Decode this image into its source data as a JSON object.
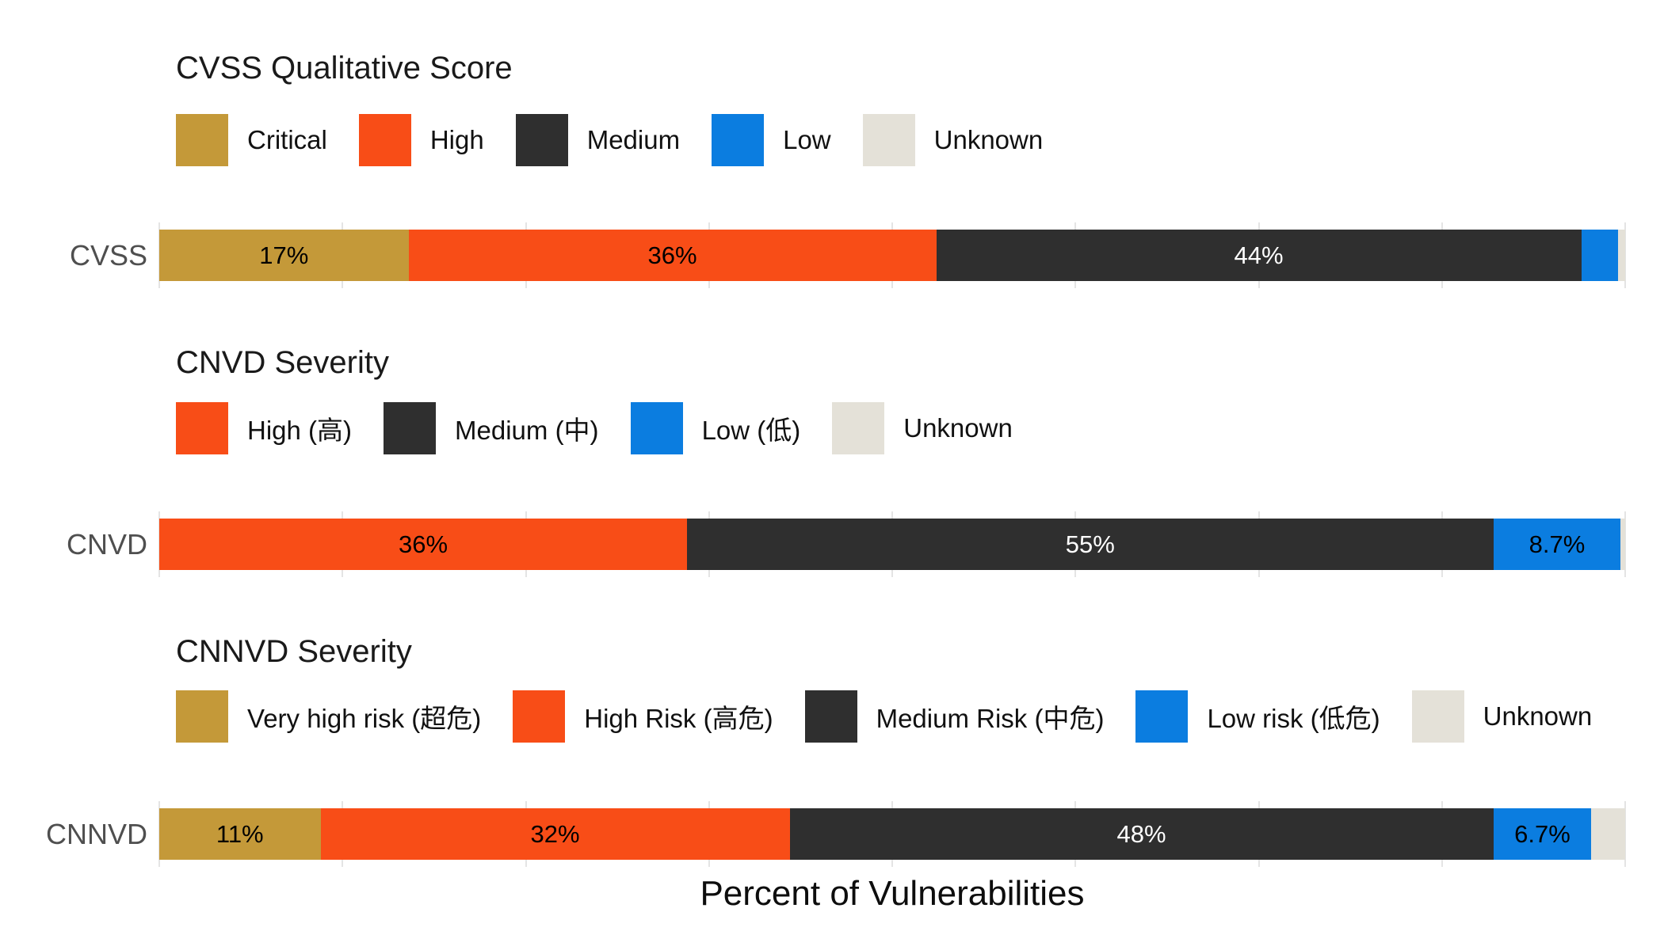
{
  "colors": {
    "gold": "#c49939",
    "orange": "#f84d17",
    "dark": "#2f2f2f",
    "blue": "#0b7de0",
    "beige": "#e4e1d8",
    "gridline": "#e4e4e4",
    "row_label": "#4f4f4f",
    "bar_label_dark": "#000000",
    "bar_label_light": "#ffffff"
  },
  "x_axis": {
    "label": "Percent of Vulnerabilities"
  },
  "chart_data": [
    {
      "type": "bar",
      "orientation": "horizontal",
      "stacked": true,
      "title": "CVSS Qualitative Score",
      "row_label": "CVSS",
      "xlim": [
        0,
        100
      ],
      "gridline_step_pct": 12.5,
      "grid": true,
      "legend_position": "top",
      "legend": [
        {
          "label": "Critical",
          "color_key": "gold"
        },
        {
          "label": "High",
          "color_key": "orange"
        },
        {
          "label": "Medium",
          "color_key": "dark"
        },
        {
          "label": "Low",
          "color_key": "blue"
        },
        {
          "label": "Unknown",
          "color_key": "beige"
        }
      ],
      "segments": [
        {
          "label": "Critical",
          "value": 17,
          "display": "17%",
          "color_key": "gold",
          "text_color": "#000000",
          "show_label": true
        },
        {
          "label": "High",
          "value": 36,
          "display": "36%",
          "color_key": "orange",
          "text_color": "#000000",
          "show_label": true
        },
        {
          "label": "Medium",
          "value": 44,
          "display": "44%",
          "color_key": "dark",
          "text_color": "#ffffff",
          "show_label": true
        },
        {
          "label": "Low",
          "value": 2.5,
          "display": "",
          "color_key": "blue",
          "text_color": "#000000",
          "show_label": false
        },
        {
          "label": "Unknown",
          "value": 0.5,
          "display": "",
          "color_key": "beige",
          "text_color": "#000000",
          "show_label": false
        }
      ]
    },
    {
      "type": "bar",
      "orientation": "horizontal",
      "stacked": true,
      "title": "CNVD Severity",
      "row_label": "CNVD",
      "xlim": [
        0,
        100
      ],
      "gridline_step_pct": 12.5,
      "grid": true,
      "legend_position": "top",
      "legend": [
        {
          "label": "High (高)",
          "color_key": "orange"
        },
        {
          "label": "Medium (中)",
          "color_key": "dark"
        },
        {
          "label": "Low (低)",
          "color_key": "blue"
        },
        {
          "label": "Unknown",
          "color_key": "beige"
        }
      ],
      "segments": [
        {
          "label": "High (高)",
          "value": 36,
          "display": "36%",
          "color_key": "orange",
          "text_color": "#000000",
          "show_label": true
        },
        {
          "label": "Medium (中)",
          "value": 55,
          "display": "55%",
          "color_key": "dark",
          "text_color": "#ffffff",
          "show_label": true
        },
        {
          "label": "Low (低)",
          "value": 8.7,
          "display": "8.7%",
          "color_key": "blue",
          "text_color": "#000000",
          "show_label": true
        },
        {
          "label": "Unknown",
          "value": 0.3,
          "display": "",
          "color_key": "beige",
          "text_color": "#000000",
          "show_label": false
        }
      ]
    },
    {
      "type": "bar",
      "orientation": "horizontal",
      "stacked": true,
      "title": "CNNVD Severity",
      "row_label": "CNNVD",
      "xlim": [
        0,
        100
      ],
      "gridline_step_pct": 12.5,
      "grid": true,
      "legend_position": "top",
      "legend": [
        {
          "label": "Very high risk (超危)",
          "color_key": "gold"
        },
        {
          "label": "High Risk (高危)",
          "color_key": "orange"
        },
        {
          "label": "Medium Risk (中危)",
          "color_key": "dark"
        },
        {
          "label": "Low risk (低危)",
          "color_key": "blue"
        },
        {
          "label": "Unknown",
          "color_key": "beige"
        }
      ],
      "segments": [
        {
          "label": "Very high risk (超危)",
          "value": 11,
          "display": "11%",
          "color_key": "gold",
          "text_color": "#000000",
          "show_label": true
        },
        {
          "label": "High Risk (高危)",
          "value": 32,
          "display": "32%",
          "color_key": "orange",
          "text_color": "#000000",
          "show_label": true
        },
        {
          "label": "Medium Risk (中危)",
          "value": 48,
          "display": "48%",
          "color_key": "dark",
          "text_color": "#ffffff",
          "show_label": true
        },
        {
          "label": "Low risk (低危)",
          "value": 6.7,
          "display": "6.7%",
          "color_key": "blue",
          "text_color": "#000000",
          "show_label": true
        },
        {
          "label": "Unknown",
          "value": 2.3,
          "display": "",
          "color_key": "beige",
          "text_color": "#000000",
          "show_label": false
        }
      ]
    }
  ]
}
